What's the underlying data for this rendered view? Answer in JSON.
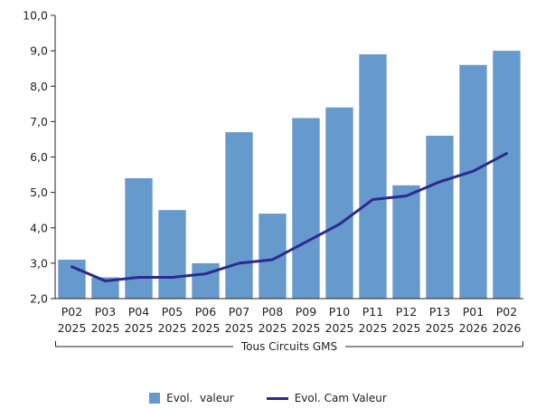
{
  "colors": {
    "bar": "#6699cc",
    "line": "#2b2a8f",
    "axis": "#222222"
  },
  "chart_data": {
    "type": "bar",
    "categories": [
      [
        "P02",
        "2025"
      ],
      [
        "P03",
        "2025"
      ],
      [
        "P04",
        "2025"
      ],
      [
        "P05",
        "2025"
      ],
      [
        "P06",
        "2025"
      ],
      [
        "P07",
        "2025"
      ],
      [
        "P08",
        "2025"
      ],
      [
        "P09",
        "2025"
      ],
      [
        "P10",
        "2025"
      ],
      [
        "P11",
        "2025"
      ],
      [
        "P12",
        "2025"
      ],
      [
        "P13",
        "2025"
      ],
      [
        "P01",
        "2026"
      ],
      [
        "P02",
        "2026"
      ]
    ],
    "group_label": "Tous Circuits GMS",
    "series": [
      {
        "name": "Evol.  valeur",
        "type": "bar",
        "values": [
          3.1,
          2.6,
          5.4,
          4.5,
          3.0,
          6.7,
          4.4,
          7.1,
          7.4,
          8.9,
          5.2,
          6.6,
          8.6,
          9.0
        ]
      },
      {
        "name": "Evol. Cam Valeur",
        "type": "line",
        "values": [
          2.9,
          2.5,
          2.6,
          2.6,
          2.7,
          3.0,
          3.1,
          3.6,
          4.1,
          4.8,
          4.9,
          5.3,
          5.6,
          6.1
        ]
      }
    ],
    "ylim": [
      2.0,
      10.0
    ],
    "yticks": [
      "2,0",
      "3,0",
      "4,0",
      "5,0",
      "6,0",
      "7,0",
      "8,0",
      "9,0",
      "10,0"
    ],
    "grid": false,
    "legend_position": "bottom"
  }
}
